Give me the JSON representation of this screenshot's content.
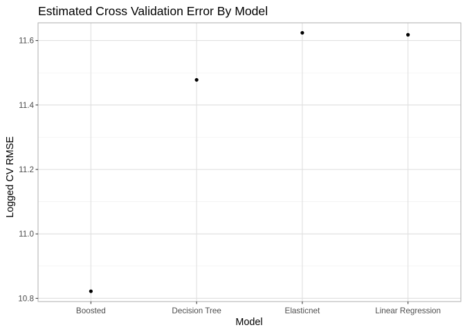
{
  "chart_data": {
    "type": "scatter",
    "title": "Estimated Cross Validation Error By Model",
    "xlabel": "Model",
    "ylabel": "Logged CV RMSE",
    "categories": [
      "Boosted",
      "Decision Tree",
      "Elasticnet",
      "Linear Regression"
    ],
    "values": [
      10.822,
      11.478,
      11.624,
      11.618
    ],
    "ylim": [
      10.79,
      11.655
    ],
    "yticks": [
      10.8,
      11.0,
      11.2,
      11.4,
      11.6
    ],
    "ytick_labels": [
      "10.8",
      "11.0",
      "11.2",
      "11.4",
      "11.6"
    ],
    "grid": true,
    "theme": "light",
    "point_color": "#000000"
  }
}
